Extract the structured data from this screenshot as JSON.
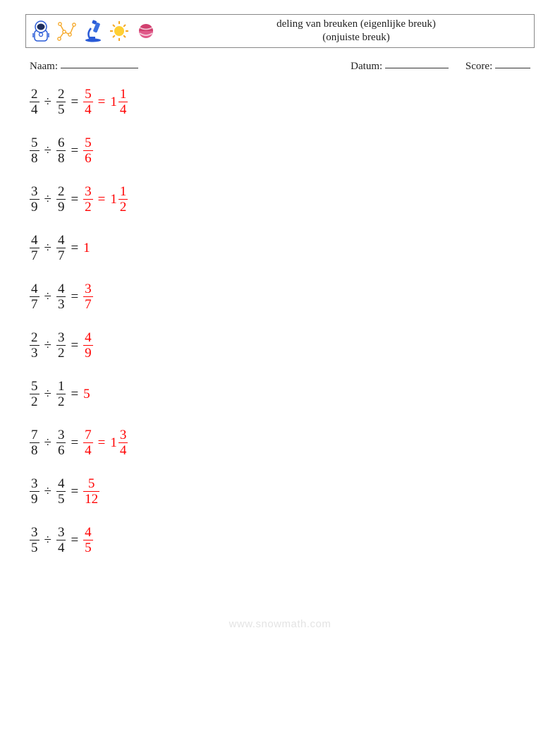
{
  "colors": {
    "answer": "#ff0000",
    "text": "#1a1a1a",
    "border": "#888888",
    "watermark": "#e4e4e4"
  },
  "fontsize": {
    "title": 15,
    "meta": 15,
    "problem": 19
  },
  "header": {
    "title_line1": "deling van breuken (eigenlijke breuk)",
    "title_line2": "(onjuiste breuk)"
  },
  "meta": {
    "name_label": "Naam:",
    "date_label": "Datum:",
    "score_label": "Score:",
    "name_blank_width": 110,
    "date_blank_width": 90,
    "score_blank_width": 50
  },
  "icons": [
    {
      "name": "astronaut-icon"
    },
    {
      "name": "constellation-icon"
    },
    {
      "name": "microscope-icon"
    },
    {
      "name": "sun-icon"
    },
    {
      "name": "planet-icon"
    }
  ],
  "operator": "÷",
  "equals": "=",
  "problems": [
    {
      "a": {
        "n": "2",
        "d": "4"
      },
      "b": {
        "n": "2",
        "d": "5"
      },
      "ans1": {
        "type": "frac",
        "n": "5",
        "d": "4"
      },
      "ans2": {
        "type": "mixed",
        "w": "1",
        "n": "1",
        "d": "4"
      }
    },
    {
      "a": {
        "n": "5",
        "d": "8"
      },
      "b": {
        "n": "6",
        "d": "8"
      },
      "ans1": {
        "type": "frac",
        "n": "5",
        "d": "6"
      }
    },
    {
      "a": {
        "n": "3",
        "d": "9"
      },
      "b": {
        "n": "2",
        "d": "9"
      },
      "ans1": {
        "type": "frac",
        "n": "3",
        "d": "2"
      },
      "ans2": {
        "type": "mixed",
        "w": "1",
        "n": "1",
        "d": "2"
      }
    },
    {
      "a": {
        "n": "4",
        "d": "7"
      },
      "b": {
        "n": "4",
        "d": "7"
      },
      "ans1": {
        "type": "whole",
        "w": "1"
      }
    },
    {
      "a": {
        "n": "4",
        "d": "7"
      },
      "b": {
        "n": "4",
        "d": "3"
      },
      "ans1": {
        "type": "frac",
        "n": "3",
        "d": "7"
      }
    },
    {
      "a": {
        "n": "2",
        "d": "3"
      },
      "b": {
        "n": "3",
        "d": "2"
      },
      "ans1": {
        "type": "frac",
        "n": "4",
        "d": "9"
      }
    },
    {
      "a": {
        "n": "5",
        "d": "2"
      },
      "b": {
        "n": "1",
        "d": "2"
      },
      "ans1": {
        "type": "whole",
        "w": "5"
      }
    },
    {
      "a": {
        "n": "7",
        "d": "8"
      },
      "b": {
        "n": "3",
        "d": "6"
      },
      "ans1": {
        "type": "frac",
        "n": "7",
        "d": "4"
      },
      "ans2": {
        "type": "mixed",
        "w": "1",
        "n": "3",
        "d": "4"
      }
    },
    {
      "a": {
        "n": "3",
        "d": "9"
      },
      "b": {
        "n": "4",
        "d": "5"
      },
      "ans1": {
        "type": "frac",
        "n": "5",
        "d": "12"
      }
    },
    {
      "a": {
        "n": "3",
        "d": "5"
      },
      "b": {
        "n": "3",
        "d": "4"
      },
      "ans1": {
        "type": "frac",
        "n": "4",
        "d": "5"
      }
    }
  ],
  "watermark": "www.snowmath.com"
}
